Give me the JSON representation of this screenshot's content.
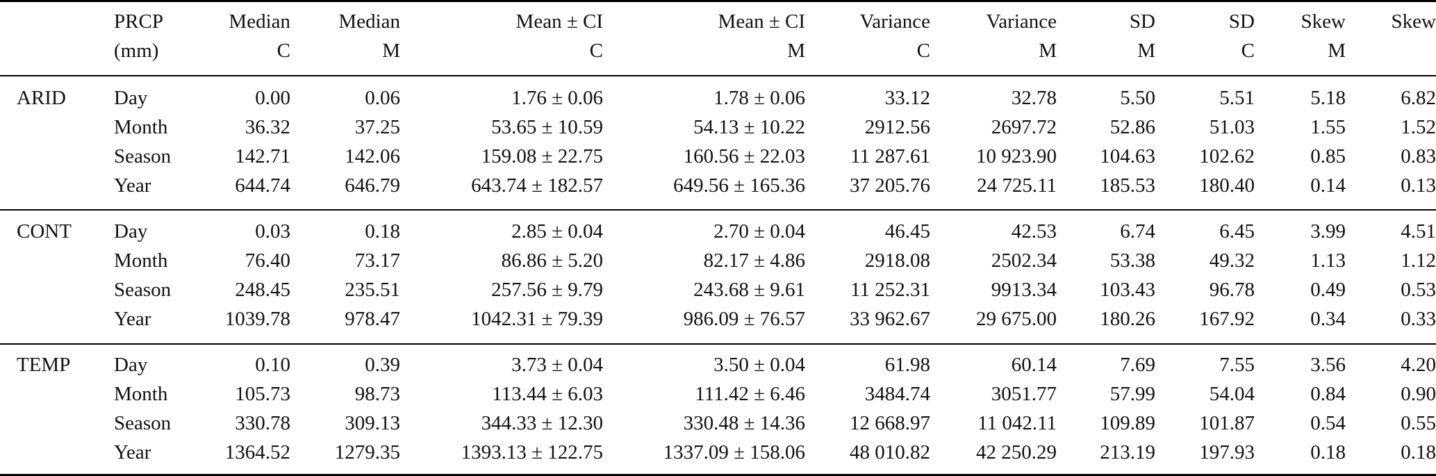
{
  "table": {
    "header_top": [
      "",
      "PRCP",
      "Median",
      "Median",
      "Mean ± CI",
      "Mean ± CI",
      "Variance",
      "Variance",
      "SD",
      "SD",
      "Skew",
      "Skew"
    ],
    "header_bottom": [
      "",
      "(mm)",
      "C",
      "M",
      "C",
      "M",
      "C",
      "M",
      "M",
      "C",
      "M",
      ""
    ],
    "groups": [
      {
        "label": "ARID",
        "rows": [
          [
            "Day",
            "0.00",
            "0.06",
            "1.76 ± 0.06",
            "1.78 ± 0.06",
            "33.12",
            "32.78",
            "5.50",
            "5.51",
            "5.18",
            "6.82"
          ],
          [
            "Month",
            "36.32",
            "37.25",
            "53.65 ± 10.59",
            "54.13 ± 10.22",
            "2912.56",
            "2697.72",
            "52.86",
            "51.03",
            "1.55",
            "1.52"
          ],
          [
            "Season",
            "142.71",
            "142.06",
            "159.08 ± 22.75",
            "160.56 ± 22.03",
            "11 287.61",
            "10 923.90",
            "104.63",
            "102.62",
            "0.85",
            "0.83"
          ],
          [
            "Year",
            "644.74",
            "646.79",
            "643.74 ± 182.57",
            "649.56 ± 165.36",
            "37 205.76",
            "24 725.11",
            "185.53",
            "180.40",
            "0.14",
            "0.13"
          ]
        ]
      },
      {
        "label": "CONT",
        "rows": [
          [
            "Day",
            "0.03",
            "0.18",
            "2.85 ± 0.04",
            "2.70 ± 0.04",
            "46.45",
            "42.53",
            "6.74",
            "6.45",
            "3.99",
            "4.51"
          ],
          [
            "Month",
            "76.40",
            "73.17",
            "86.86 ± 5.20",
            "82.17 ± 4.86",
            "2918.08",
            "2502.34",
            "53.38",
            "49.32",
            "1.13",
            "1.12"
          ],
          [
            "Season",
            "248.45",
            "235.51",
            "257.56 ± 9.79",
            "243.68 ± 9.61",
            "11 252.31",
            "9913.34",
            "103.43",
            "96.78",
            "0.49",
            "0.53"
          ],
          [
            "Year",
            "1039.78",
            "978.47",
            "1042.31 ± 79.39",
            "986.09 ± 76.57",
            "33 962.67",
            "29 675.00",
            "180.26",
            "167.92",
            "0.34",
            "0.33"
          ]
        ]
      },
      {
        "label": "TEMP",
        "rows": [
          [
            "Day",
            "0.10",
            "0.39",
            "3.73 ± 0.04",
            "3.50 ± 0.04",
            "61.98",
            "60.14",
            "7.69",
            "7.55",
            "3.56",
            "4.20"
          ],
          [
            "Month",
            "105.73",
            "98.73",
            "113.44 ± 6.03",
            "111.42 ± 6.46",
            "3484.74",
            "3051.77",
            "57.99",
            "54.04",
            "0.84",
            "0.90"
          ],
          [
            "Season",
            "330.78",
            "309.13",
            "344.33 ± 12.30",
            "330.48 ± 14.36",
            "12 668.97",
            "11 042.11",
            "109.89",
            "101.87",
            "0.54",
            "0.55"
          ],
          [
            "Year",
            "1364.52",
            "1279.35",
            "1393.13 ± 122.75",
            "1337.09 ± 158.06",
            "48 010.82",
            "42 250.29",
            "213.19",
            "197.93",
            "0.18",
            "0.18"
          ]
        ]
      }
    ]
  }
}
